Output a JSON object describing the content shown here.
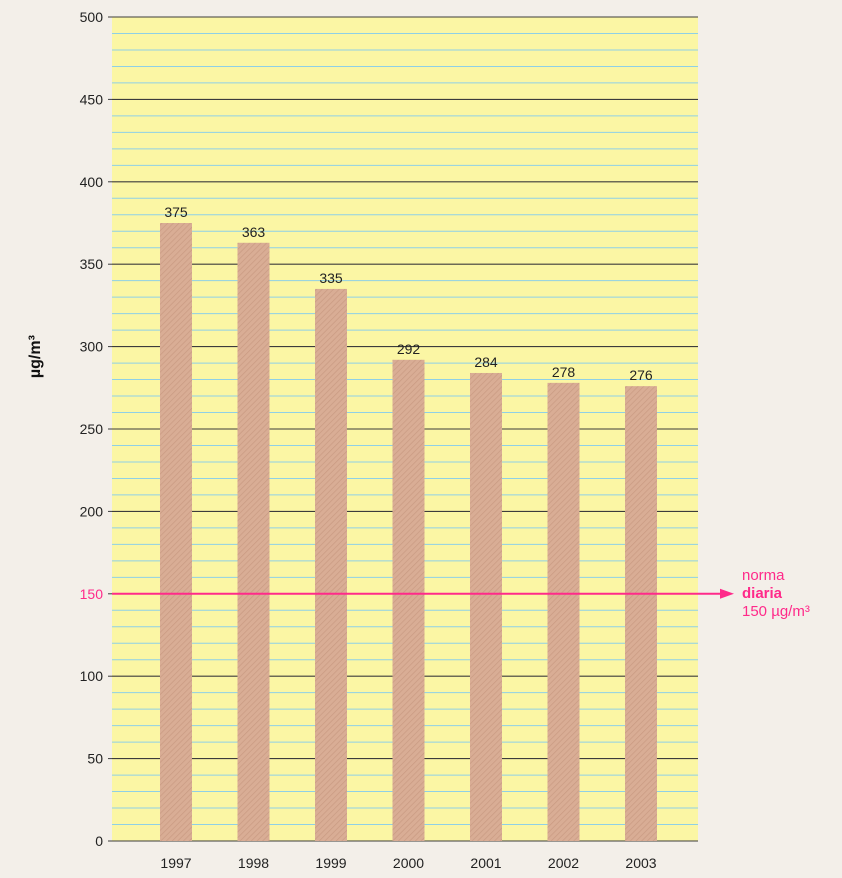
{
  "chart_data": {
    "type": "bar",
    "categories": [
      "1997",
      "1998",
      "1999",
      "2000",
      "2001",
      "2002",
      "2003"
    ],
    "values": [
      375,
      363,
      335,
      292,
      284,
      278,
      276
    ],
    "data_labels": [
      "375",
      "363",
      "335",
      "292",
      "284",
      "278",
      "276"
    ],
    "ylabel": "µg/m³",
    "ylim": [
      0,
      500
    ],
    "yticks": [
      0,
      50,
      100,
      150,
      200,
      250,
      300,
      350,
      400,
      450,
      500
    ],
    "ytick_labels": [
      "0",
      "50",
      "100",
      "150",
      "200",
      "250",
      "300",
      "350",
      "400",
      "450",
      "500"
    ],
    "grid": true,
    "reference_line": {
      "value": 150,
      "label_lines": [
        "norma",
        "diaria",
        "150 µg/m³"
      ]
    },
    "colors": {
      "plot_background": "#fbf6a4",
      "major_grid": "#3c3c3c",
      "minor_grid": "#8fd0e6",
      "bar_fill": "#d9ad95",
      "bar_hatch": "#c99a82",
      "reference": "#ff2a8a",
      "page_background": "#f3efe9"
    }
  }
}
